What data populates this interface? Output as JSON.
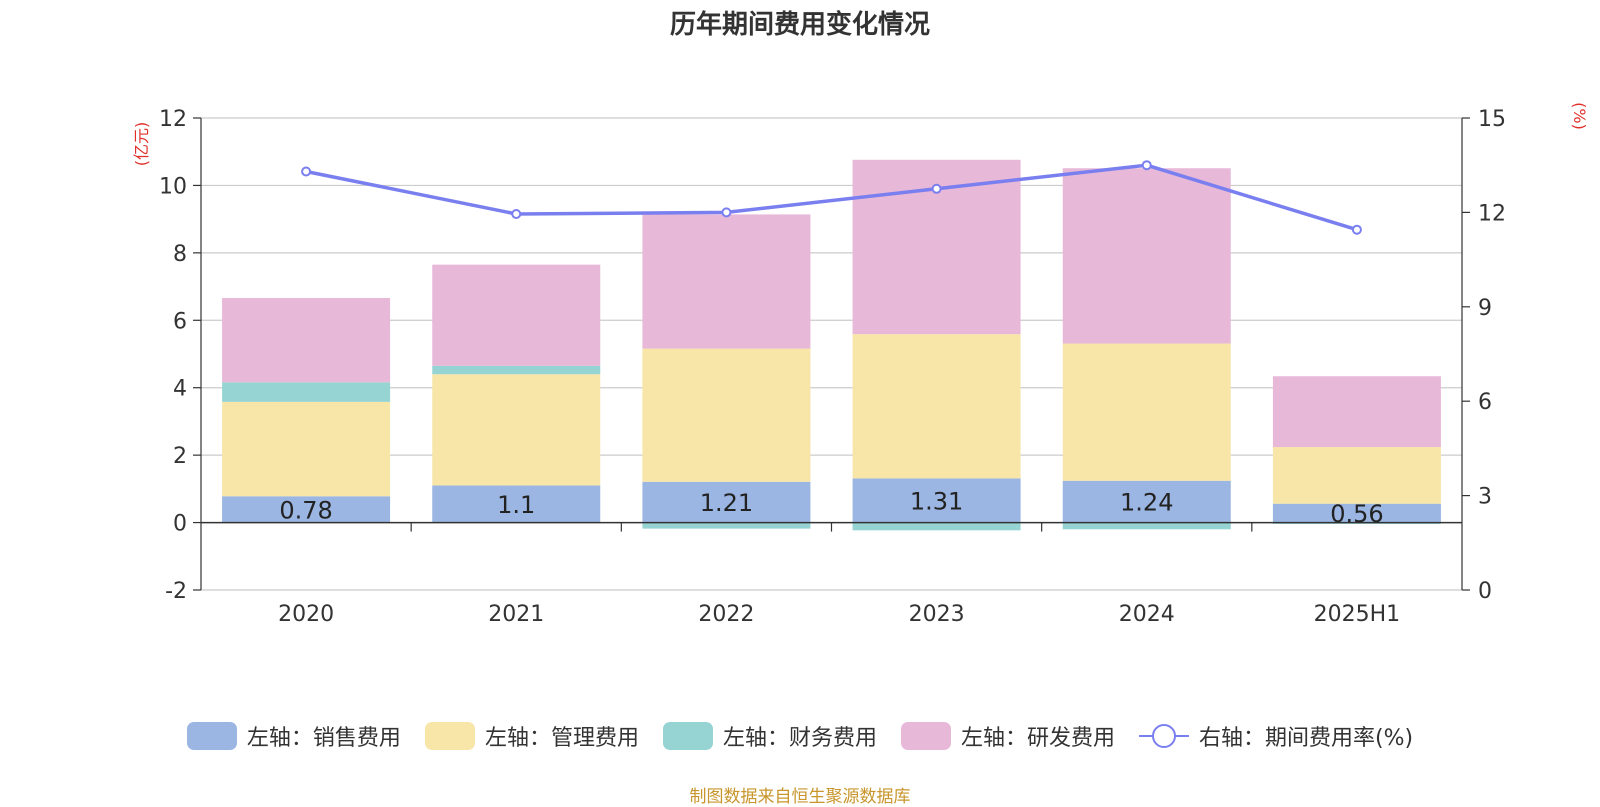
{
  "chart_data": {
    "type": "bar",
    "title": "历年期间费用变化情况",
    "categories": [
      "2020",
      "2021",
      "2022",
      "2023",
      "2024",
      "2025H1"
    ],
    "y_left": {
      "label": "(亿元)",
      "ylim": [
        -2,
        12
      ],
      "ticks": [
        -2,
        0,
        2,
        4,
        6,
        8,
        10,
        12
      ]
    },
    "y_right": {
      "label": "(%)",
      "ylim": [
        0,
        15
      ],
      "ticks": [
        0,
        3,
        6,
        9,
        12,
        15
      ]
    },
    "series": [
      {
        "name": "左轴：销售费用",
        "type": "bar",
        "stack": "left",
        "color": "#9bb6e2",
        "values": [
          0.78,
          1.1,
          1.21,
          1.31,
          1.24,
          0.56
        ],
        "labels": [
          "0.78",
          "1.1",
          "1.21",
          "1.31",
          "1.24",
          "0.56"
        ]
      },
      {
        "name": "左轴：管理费用",
        "type": "bar",
        "stack": "left",
        "color": "#f8e6a8",
        "values": [
          2.8,
          3.3,
          3.95,
          4.28,
          4.07,
          1.68
        ]
      },
      {
        "name": "左轴：财务费用",
        "type": "bar",
        "stack": "left",
        "color": "#96d4d4",
        "values": [
          0.58,
          0.25,
          -0.18,
          -0.23,
          -0.2,
          -0.04
        ]
      },
      {
        "name": "左轴：研发费用",
        "type": "bar",
        "stack": "left",
        "color": "#e8b8d8",
        "values": [
          2.5,
          3.0,
          3.98,
          5.17,
          5.2,
          2.1
        ]
      },
      {
        "name": "右轴：期间费用率(%)",
        "type": "line",
        "axis": "right",
        "color": "#7a7ff0",
        "values": [
          13.3,
          11.95,
          12.0,
          12.75,
          13.5,
          11.45
        ]
      }
    ],
    "grid": true,
    "legend_position": "bottom"
  },
  "source_note": "制图数据来自恒生聚源数据库"
}
